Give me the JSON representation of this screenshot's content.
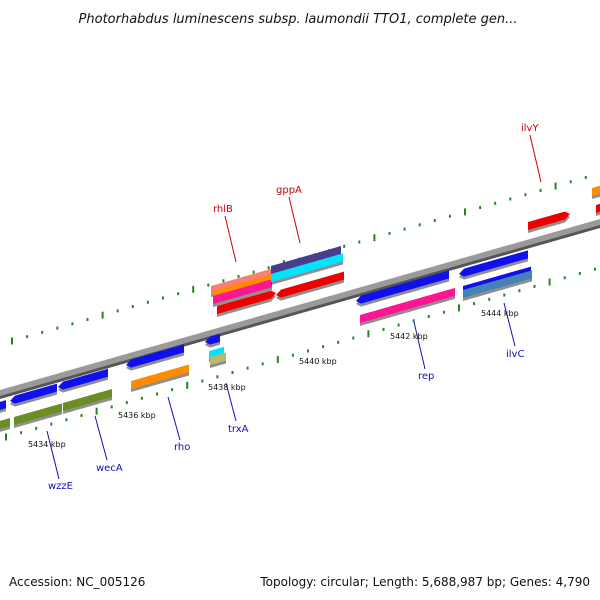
{
  "title": "Photorhabdus luminescens subsp. laumondii TTO1, complete gen...",
  "footer": {
    "accession": "Accession: NC_005126",
    "summary": "Topology: circular; Length: 5,688,987 bp; Genes: 4,790"
  },
  "colors": {
    "backbone": "#8a8a8a",
    "tick": "#1e8a1e",
    "top_label": "#cc0000",
    "bottom_label": "#1010c0",
    "red": "#ee0000",
    "blue": "#1010ee",
    "orange": "#ff8c00",
    "olive": "#6b8e23",
    "pink": "#ff1493",
    "cyan": "#00e5ff",
    "steel": "#4682b4",
    "slate": "#483d8b",
    "salmon": "#fa8072",
    "tan": "#bdb76b"
  },
  "kbp_labels": [
    "5434 kbp",
    "5436 kbp",
    "5438 kbp",
    "5440 kbp",
    "5442 kbp",
    "5444 kbp"
  ],
  "gene_labels_top": [
    "rhlB",
    "gppA",
    "ilvY"
  ],
  "gene_labels_bottom": [
    "wzzE",
    "wecA",
    "rho",
    "trxA",
    "rep",
    "ilvC"
  ]
}
